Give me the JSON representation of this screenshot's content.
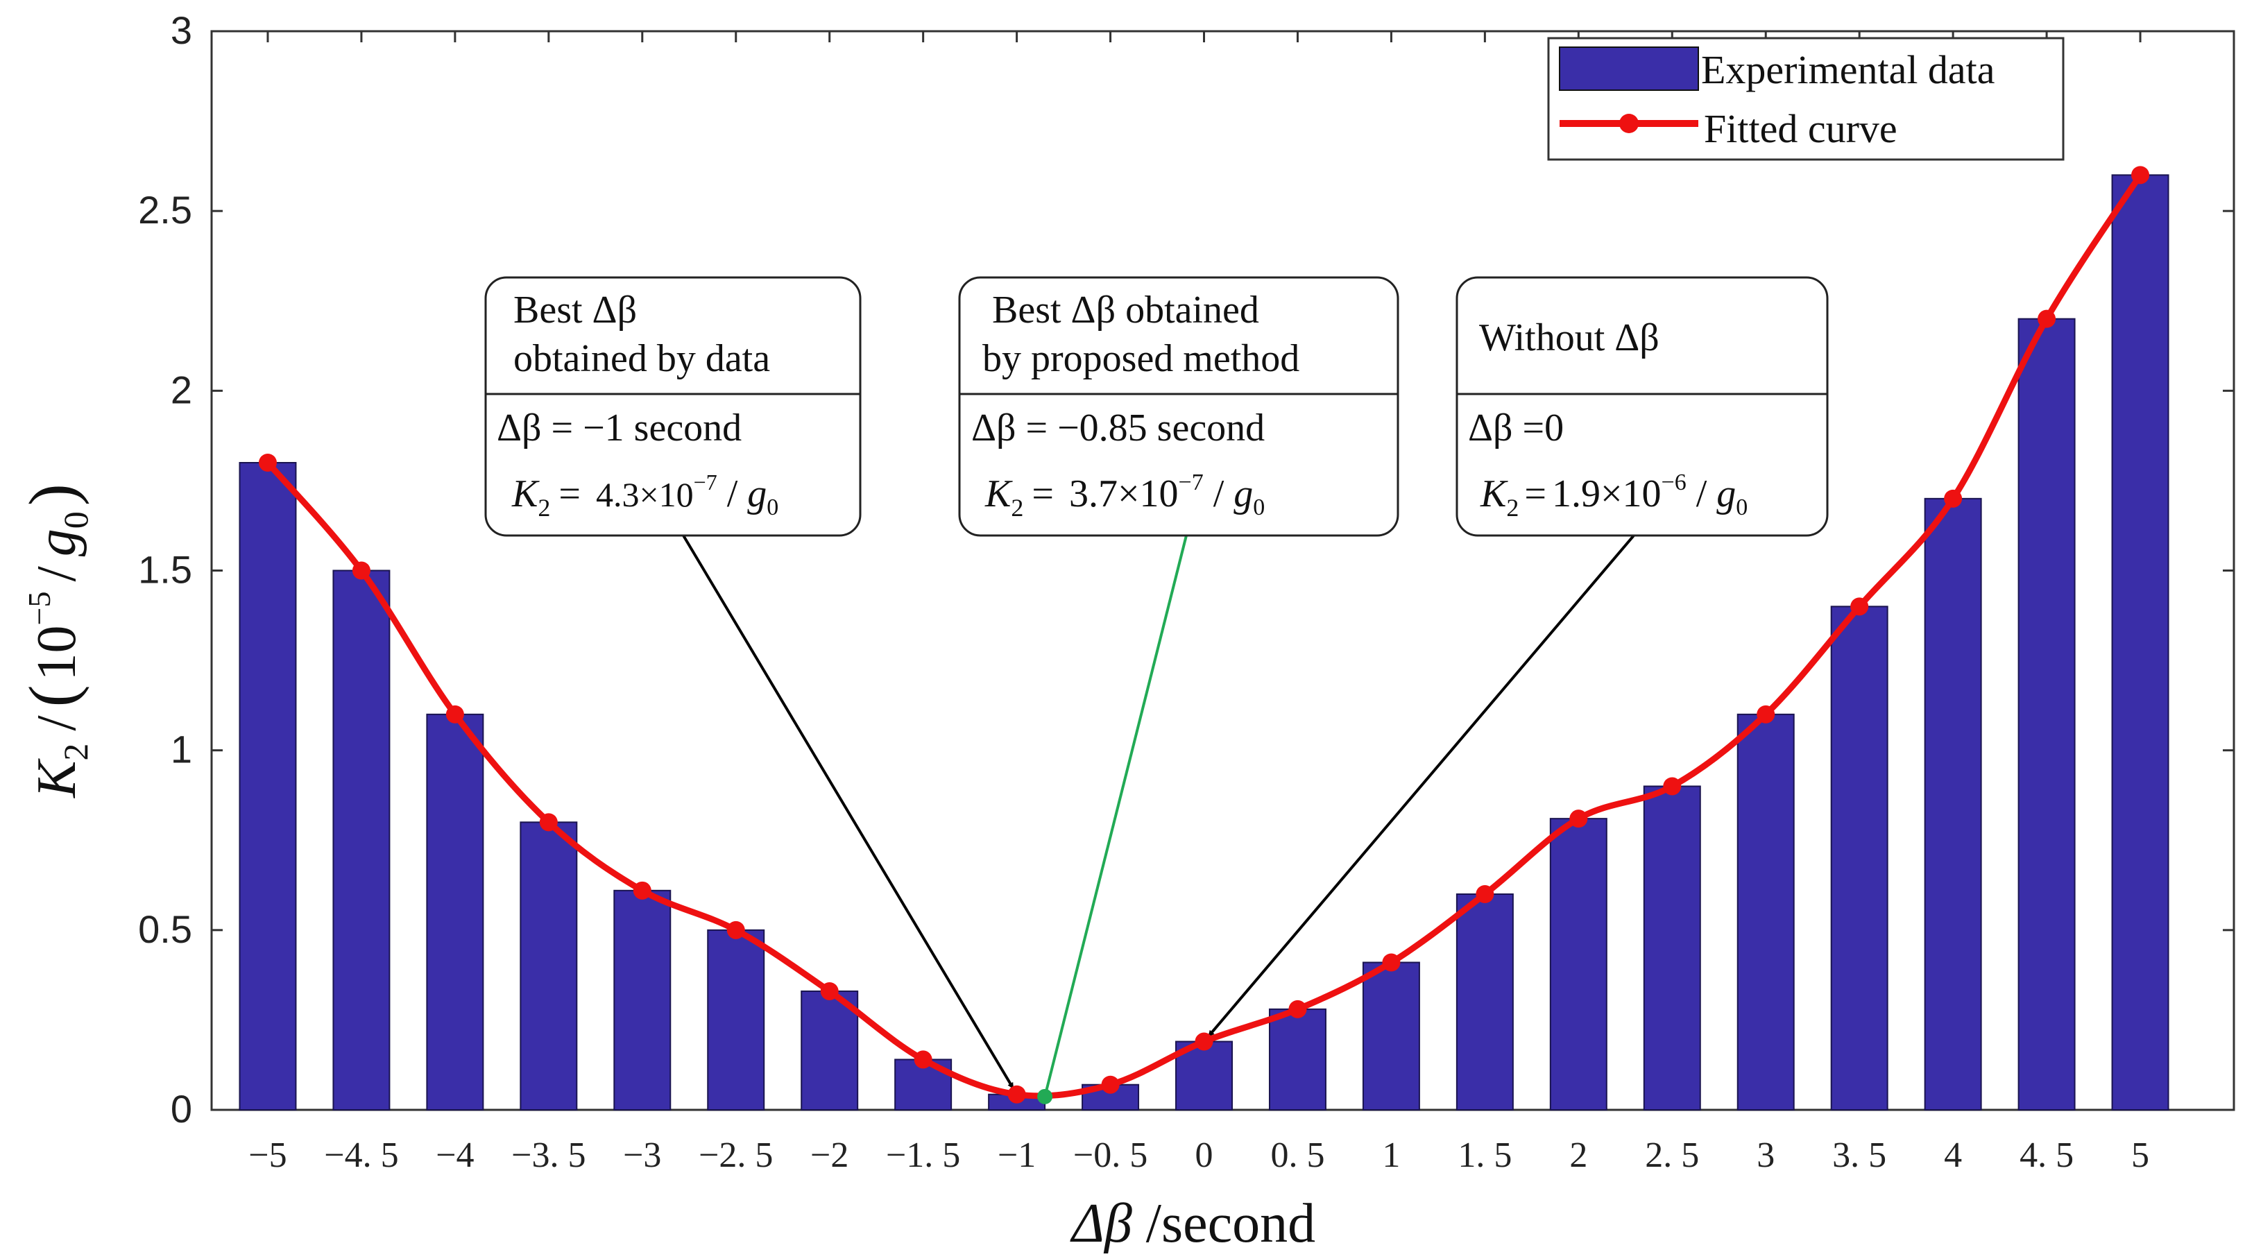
{
  "chart_data": {
    "type": "bar",
    "x": [
      -5,
      -4.5,
      -4,
      -3.5,
      -3,
      -2.5,
      -2,
      -1.5,
      -1,
      -0.5,
      0,
      0.5,
      1,
      1.5,
      2,
      2.5,
      3,
      3.5,
      4,
      4.5,
      5
    ],
    "x_tick_labels": [
      "−5",
      "−4. 5",
      "−4",
      "−3. 5",
      "−3",
      "−2. 5",
      "−2",
      "−1. 5",
      "−1",
      "−0. 5",
      "0",
      "0. 5",
      "1",
      "1. 5",
      "2",
      "2. 5",
      "3",
      "3. 5",
      "4",
      "4. 5",
      "5"
    ],
    "series": [
      {
        "name": "Experimental data",
        "type": "bar",
        "color": "#3a2ea8",
        "values": [
          1.8,
          1.5,
          1.1,
          0.8,
          0.61,
          0.5,
          0.33,
          0.14,
          0.043,
          0.07,
          0.19,
          0.28,
          0.41,
          0.6,
          0.81,
          0.9,
          1.1,
          1.4,
          1.7,
          2.2,
          2.6
        ]
      },
      {
        "name": "Fitted curve",
        "type": "line",
        "color": "#ee1111",
        "values": [
          1.8,
          1.5,
          1.1,
          0.8,
          0.61,
          0.5,
          0.33,
          0.14,
          0.043,
          0.07,
          0.19,
          0.28,
          0.41,
          0.6,
          0.81,
          0.9,
          1.1,
          1.4,
          1.7,
          2.2,
          2.6
        ]
      }
    ],
    "ylim": [
      0,
      3
    ],
    "xlim": [
      -5.3,
      5.5
    ],
    "y_ticks": [
      0,
      0.5,
      1,
      1.5,
      2,
      2.5,
      3
    ],
    "y_tick_labels": [
      "0",
      "0.5",
      "1",
      "1.5",
      "2",
      "2.5",
      "3"
    ],
    "xlabel": {
      "delta_beta": "Δβ",
      "unit": "/second"
    },
    "ylabel": {
      "k": "K",
      "k_sub": "2",
      "slash": "/",
      "paren_open": "(",
      "base": "10",
      "exp": "−5",
      "div": "/",
      "g": "g",
      "g_sub": "0",
      "paren_close": ")"
    },
    "legend": {
      "position": "top-right",
      "items": [
        "Experimental data",
        "Fitted curve"
      ]
    },
    "best_point": {
      "x": -0.85,
      "y": 0.037,
      "color": "#22aa55"
    },
    "annotations": [
      {
        "title_line1": "Best  Δβ",
        "title_line2": "obtained by data",
        "value_line": "Δβ = −1 second",
        "k_prefix": "K",
        "k_sub": "2",
        "k_eq": "=",
        "k_value": "4.3×10",
        "k_exp": "−7",
        "k_div": "/",
        "k_g": "g",
        "k_gsub": "0",
        "target_x": -1,
        "target_y": 0.043,
        "arrow": "black"
      },
      {
        "title_line1": "Best  Δβ  obtained",
        "title_line2": "by proposed method",
        "value_line": "Δβ = −0.85  second",
        "k_prefix": "K",
        "k_sub": "2",
        "k_eq": "=",
        "k_value": "3.7×10",
        "k_exp": "−7",
        "k_div": "/",
        "k_g": "g",
        "k_gsub": "0",
        "target_x": -0.85,
        "target_y": 0.037,
        "arrow": "green"
      },
      {
        "title_line1": "Without Δβ",
        "title_line2": "",
        "value_line": "Δβ =0",
        "k_prefix": "K",
        "k_sub": "2",
        "k_eq": "=",
        "k_value": "1.9×10",
        "k_exp": "−6",
        "k_div": "/",
        "k_g": "g",
        "k_gsub": "0",
        "target_x": 0,
        "target_y": 0.19,
        "arrow": "black"
      }
    ]
  }
}
